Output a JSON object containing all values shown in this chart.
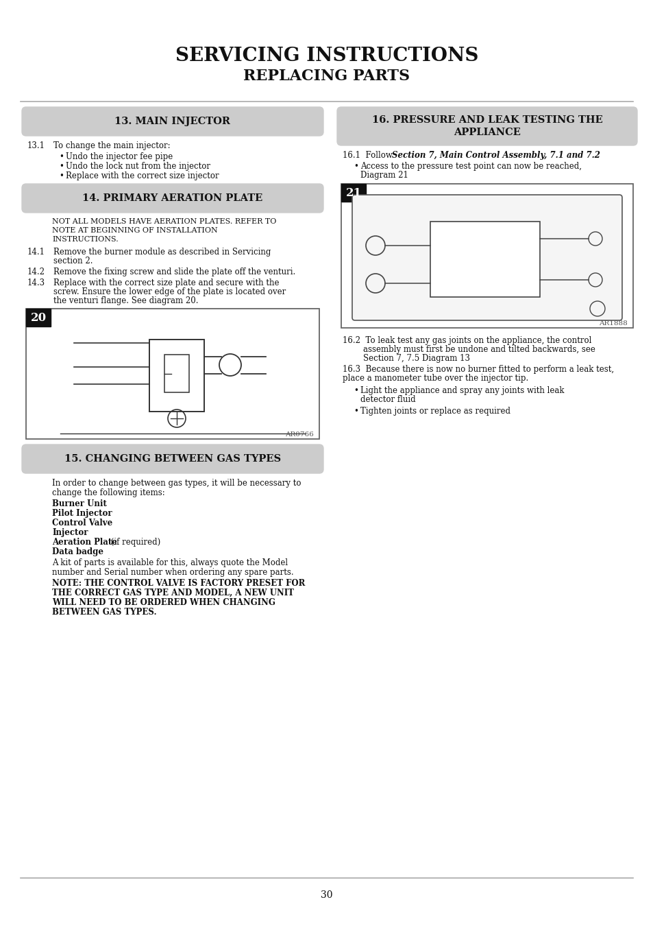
{
  "bg_color": "#ffffff",
  "title_line1": "SERVICING INSTRUCTIONS",
  "title_line2": "REPLACING PARTS",
  "section13_header": "13. MAIN INJECTOR",
  "section14_header": "14. PRIMARY AERATION PLATE",
  "section14_note": "NOT ALL MODELS HAVE AERATION PLATES. REFER TO\nNOTE AT BEGINNING OF INSTALLATION\nINSTRUCTIONS.",
  "section15_header": "15. CHANGING BETWEEN GAS TYPES",
  "section15_intro": "In order to change between gas types, it will be necessary to\nchange the following items:",
  "section15_items_bold": [
    "Burner Unit",
    "Pilot Injector",
    "Control Valve",
    "Injector"
  ],
  "section15_item_mixed1_bold": "Aeration Plate",
  "section15_item_mixed1_normal": " (if required)",
  "section15_item_data_bold": "Data badge",
  "section15_kit_text": "A kit of parts is available for this, always quote the Model\nnumber and Serial number when ordering any spare parts.",
  "section15_note_bold": "NOTE: THE CONTROL VALVE IS FACTORY PRESET FOR\nTHE CORRECT GAS TYPE AND MODEL, A NEW UNIT\nWILL NEED TO BE ORDERED WHEN CHANGING\nBETWEEN GAS TYPES.",
  "section16_header": "16. PRESSURE AND LEAK TESTING THE\nAPPLIANCE",
  "section16_161_bold": "Section 7, Main Control Assembly, 7.1 and 7.2",
  "section16_161_bullet": "Access to the pressure test point can now be reached,\nDiagram 21",
  "diagram20_label": "20",
  "diagram20_ref": "AR0766",
  "diagram21_label": "21",
  "diagram21_ref": "AR1888",
  "section16_162a": "16.2  To leak test any gas joints on the appliance, the control",
  "section16_162b": "        assembly must first be undone and tilted backwards, see",
  "section16_162c": "        Section 7, 7.5 Diagram 13",
  "section16_163a": "16.3  Because there is now no burner fitted to perform a leak test,",
  "section16_163b": "place a manometer tube over the injector tip.",
  "section16_bullets": [
    "Light the appliance and spray any joints with leak\ndetector fluid",
    "Tighten joints or replace as required"
  ],
  "page_number": "30",
  "header_bg": "#cccccc",
  "header_text_color": "#111111"
}
